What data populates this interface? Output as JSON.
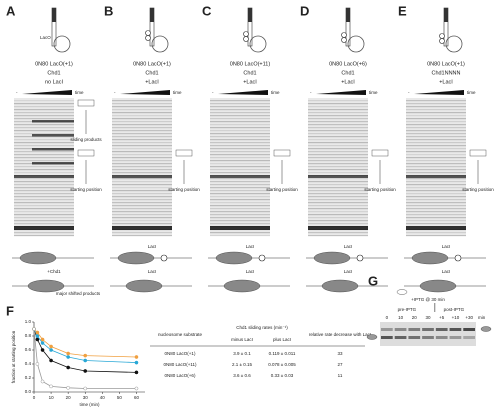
{
  "panels": [
    {
      "letter": "A",
      "construct": "0N80 LacO(+1)",
      "enzyme": "Chd1",
      "condition": "no LacI",
      "time": "time",
      "minus": "-",
      "labels": [
        "starting position",
        "sliding products"
      ],
      "bottom": [
        "LacO",
        "+Chd1",
        "major shifted products"
      ]
    },
    {
      "letter": "B",
      "construct": "0N80 LacO(+1)",
      "enzyme": "Chd1",
      "condition": "+LacI",
      "time": "time",
      "minus": "-",
      "labels": [
        "starting position"
      ],
      "bottom": [
        "LacI",
        "+Chd1"
      ]
    },
    {
      "letter": "C",
      "construct": "0N80 LacO(+11)",
      "enzyme": "Chd1",
      "condition": "+LacI",
      "time": "time",
      "minus": "-",
      "labels": [
        "starting position"
      ],
      "bottom": [
        "LacI",
        "+Chd1"
      ]
    },
    {
      "letter": "D",
      "construct": "0N80 LacO(+6)",
      "enzyme": "Chd1",
      "condition": "+LacI",
      "time": "time",
      "minus": "-",
      "labels": [
        "starting position"
      ],
      "bottom": [
        "LacI",
        "+Chd1"
      ]
    },
    {
      "letter": "E",
      "construct": "0N80 LacO(+1)",
      "enzyme": "Chd1NNNN",
      "condition": "+LacI",
      "time": "time",
      "minus": "-",
      "labels": [
        "starting position"
      ],
      "bottom": [
        "LacI",
        "+Chd1"
      ]
    }
  ],
  "panel_f": {
    "letter": "F",
    "type": "line",
    "x_label": "time (min)",
    "y_label": "fraction at starting position",
    "x": [
      0,
      2,
      5,
      10,
      20,
      30,
      60
    ],
    "xlim": [
      0,
      65
    ],
    "xticks": [
      0,
      10,
      20,
      30,
      40,
      50,
      60
    ],
    "ylim": [
      0,
      1
    ],
    "yticks": [
      {
        "value": 0,
        "label": "0.0"
      },
      0.2,
      0.4,
      0.6,
      0.8,
      {
        "value": 1,
        "label": "1.0"
      }
    ],
    "series": [
      {
        "name": "0N80 LacO(+1)",
        "color": "#111111",
        "values": [
          0.9,
          0.75,
          0.6,
          0.45,
          0.35,
          0.3,
          0.28
        ]
      },
      {
        "name": "0N80 LacO(+11)",
        "color": "#29a8d6",
        "values": [
          0.9,
          0.8,
          0.7,
          0.6,
          0.5,
          0.45,
          0.42
        ]
      },
      {
        "name": "0N80 LacO(+6)",
        "color": "#f0a040",
        "values": [
          0.9,
          0.85,
          0.75,
          0.65,
          0.55,
          0.52,
          0.5
        ]
      },
      {
        "color": "#9a9a9a",
        "values": [
          0.9,
          0.4,
          0.15,
          0.08,
          0.06,
          0.05,
          0.05
        ]
      }
    ]
  },
  "table": {
    "headers": [
      "nucleosome substrate",
      "Chd1 sliding rates (min⁻¹)",
      "relative rate decrease with LacI"
    ],
    "subheaders": [
      "minus LacI",
      "plus LacI"
    ],
    "rows": [
      [
        "0N80 LacO(+1)",
        "3.9 ± 0.1",
        "0.119 ± 0.011",
        "33"
      ],
      [
        "0N80 LacO(+11)",
        "2.1 ± 0.15",
        "0.078 ± 0.005",
        "27"
      ],
      [
        "0N80 LacO(+6)",
        "3.6 ± 0.6",
        "0.33 ± 0.03",
        "11"
      ]
    ]
  },
  "panel_g": {
    "letter": "G",
    "title": "+IPTG @ 30 min",
    "groups": [
      "pre-IPTG",
      "post-IPTG"
    ],
    "lanes": [
      "0",
      "10",
      "20",
      "30",
      "+5",
      "+10",
      "+30"
    ],
    "unit": "min"
  }
}
